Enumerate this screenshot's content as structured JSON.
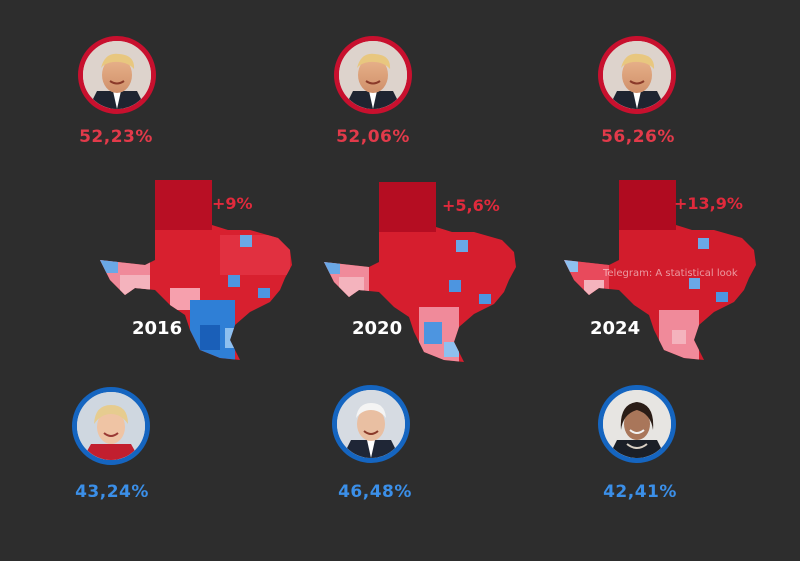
{
  "colors": {
    "background": "#2d2d2d",
    "republican": "#c8102e",
    "republican_text": "#e23a4a",
    "democrat": "#1565c0",
    "democrat_text": "#3b8fe8",
    "shift_text": "#e02a3c"
  },
  "elections": [
    {
      "year": "2016",
      "republican_pct": "52,23%",
      "democrat_pct": "43,24%",
      "shift": "+9%"
    },
    {
      "year": "2020",
      "republican_pct": "52,06%",
      "democrat_pct": "46,48%",
      "shift": "+5,6%"
    },
    {
      "year": "2024",
      "republican_pct": "56,26%",
      "democrat_pct": "42,41%",
      "shift": "+13,9%"
    }
  ],
  "watermark": "Telegram: A statistical look"
}
